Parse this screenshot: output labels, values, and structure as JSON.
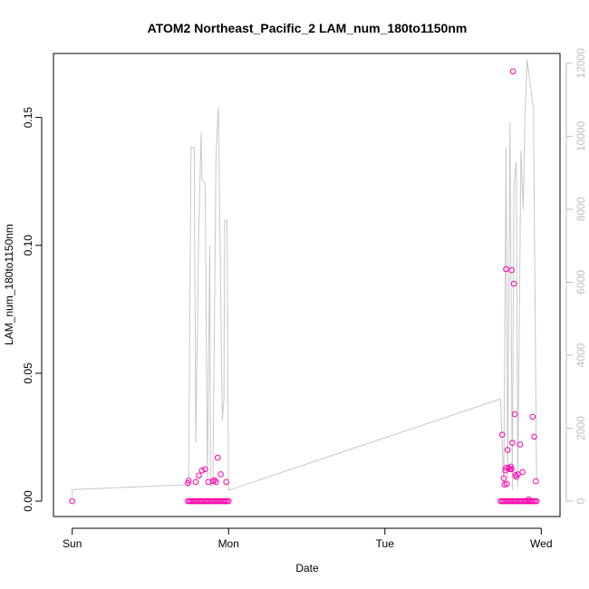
{
  "chart_data": {
    "type": "scatter",
    "title": "ATOM2 Northeast_Pacific_2 LAM_num_180to1150nm",
    "xlabel": "Date",
    "ylabel": "LAM_num_180to1150nm",
    "x_ticks": [
      "Sun",
      "Mon",
      "Tue",
      "Wed"
    ],
    "x_tick_days": [
      0,
      1,
      2,
      3
    ],
    "xlim_days": [
      -0.12,
      3.12
    ],
    "y_ticks": [
      "0.00",
      "0.05",
      "0.10",
      "0.15"
    ],
    "y_tick_values": [
      0,
      0.05,
      0.1,
      0.15
    ],
    "ylim": [
      -0.006,
      0.175
    ],
    "y2_ticks": [
      "0",
      "2000",
      "4000",
      "6000",
      "8000",
      "10000",
      "12000"
    ],
    "y2_tick_values": [
      0,
      2000,
      4000,
      6000,
      8000,
      10000,
      12000
    ],
    "y2lim": [
      -420,
      12270
    ],
    "grid": false,
    "colors": {
      "points": "#ff00aa",
      "line": "#c8c8c8",
      "axis": "#000000",
      "axis2": "#bebebe"
    },
    "series": [
      {
        "kind": "points",
        "axis": "left",
        "points": [
          [
            0.0,
            0.0
          ],
          [
            0.74,
            0.007
          ],
          [
            0.745,
            0.008
          ],
          [
            0.79,
            0.0075
          ],
          [
            0.81,
            0.01
          ],
          [
            0.83,
            0.012
          ],
          [
            0.85,
            0.0125
          ],
          [
            0.87,
            0.0075
          ],
          [
            0.9,
            0.0078
          ],
          [
            0.91,
            0.0082
          ],
          [
            0.92,
            0.0075
          ],
          [
            0.93,
            0.017
          ],
          [
            0.95,
            0.0105
          ],
          [
            0.985,
            0.0075
          ],
          [
            0.74,
            0.0
          ],
          [
            0.75,
            0.0
          ],
          [
            0.76,
            0.0
          ],
          [
            0.77,
            0.0
          ],
          [
            0.78,
            0.0
          ],
          [
            0.79,
            0.0
          ],
          [
            0.8,
            0.0
          ],
          [
            0.81,
            0.0
          ],
          [
            0.82,
            0.0
          ],
          [
            0.83,
            0.0
          ],
          [
            0.84,
            0.0
          ],
          [
            0.85,
            0.0
          ],
          [
            0.86,
            0.0
          ],
          [
            0.87,
            0.0
          ],
          [
            0.88,
            0.0
          ],
          [
            0.89,
            0.0
          ],
          [
            0.9,
            0.0
          ],
          [
            0.91,
            0.0
          ],
          [
            0.92,
            0.0
          ],
          [
            0.93,
            0.0
          ],
          [
            0.94,
            0.0
          ],
          [
            0.95,
            0.0
          ],
          [
            0.96,
            0.0
          ],
          [
            0.97,
            0.0
          ],
          [
            0.98,
            0.0
          ],
          [
            0.99,
            0.0
          ],
          [
            1.0,
            0.0
          ],
          [
            2.75,
            0.026
          ],
          [
            2.76,
            0.009
          ],
          [
            2.765,
            0.0065
          ],
          [
            2.77,
            0.012
          ],
          [
            2.775,
            0.013
          ],
          [
            2.78,
            0.0068
          ],
          [
            2.775,
            0.0907
          ],
          [
            2.785,
            0.02
          ],
          [
            2.79,
            0.013
          ],
          [
            2.8,
            0.0125
          ],
          [
            2.805,
            0.0135
          ],
          [
            2.81,
            0.0125
          ],
          [
            2.81,
            0.0903
          ],
          [
            2.82,
            0.168
          ],
          [
            2.815,
            0.0228
          ],
          [
            2.825,
            0.085
          ],
          [
            2.83,
            0.034
          ],
          [
            2.835,
            0.0102
          ],
          [
            2.84,
            0.0095
          ],
          [
            2.85,
            0.0105
          ],
          [
            2.865,
            0.0222
          ],
          [
            2.88,
            0.0114
          ],
          [
            2.92,
            0.0007
          ],
          [
            2.945,
            0.033
          ],
          [
            2.955,
            0.0252
          ],
          [
            2.965,
            0.0078
          ],
          [
            2.74,
            0.0
          ],
          [
            2.75,
            0.0
          ],
          [
            2.76,
            0.0
          ],
          [
            2.77,
            0.0
          ],
          [
            2.78,
            0.0
          ],
          [
            2.79,
            0.0
          ],
          [
            2.8,
            0.0
          ],
          [
            2.81,
            0.0
          ],
          [
            2.82,
            0.0
          ],
          [
            2.83,
            0.0
          ],
          [
            2.84,
            0.0
          ],
          [
            2.85,
            0.0
          ],
          [
            2.86,
            0.0
          ],
          [
            2.87,
            0.0
          ],
          [
            2.88,
            0.0
          ],
          [
            2.89,
            0.0
          ],
          [
            2.9,
            0.0
          ],
          [
            2.91,
            0.0
          ],
          [
            2.92,
            0.0
          ],
          [
            2.93,
            0.0
          ],
          [
            2.94,
            0.0
          ],
          [
            2.95,
            0.0
          ],
          [
            2.96,
            0.0
          ],
          [
            2.97,
            0.0
          ]
        ]
      },
      {
        "kind": "line",
        "axis": "right",
        "points": [
          [
            0.0,
            100
          ],
          [
            0.0,
            320
          ],
          [
            0.74,
            450
          ],
          [
            0.745,
            450
          ],
          [
            0.76,
            9700
          ],
          [
            0.78,
            9700
          ],
          [
            0.79,
            1600
          ],
          [
            0.81,
            7600
          ],
          [
            0.825,
            10100
          ],
          [
            0.83,
            8800
          ],
          [
            0.85,
            8700
          ],
          [
            0.865,
            600
          ],
          [
            0.88,
            7000
          ],
          [
            0.885,
            400
          ],
          [
            0.9,
            600
          ],
          [
            0.92,
            9500
          ],
          [
            0.935,
            10800
          ],
          [
            0.96,
            2200
          ],
          [
            0.97,
            2800
          ],
          [
            0.975,
            7700
          ],
          [
            0.99,
            7700
          ],
          [
            1.0,
            300
          ],
          [
            2.74,
            2800
          ],
          [
            2.76,
            400
          ],
          [
            2.775,
            9700
          ],
          [
            2.785,
            600
          ],
          [
            2.8,
            10400
          ],
          [
            2.815,
            300
          ],
          [
            2.825,
            8600
          ],
          [
            2.84,
            9300
          ],
          [
            2.85,
            400
          ],
          [
            2.87,
            9600
          ],
          [
            2.885,
            8000
          ],
          [
            2.895,
            10500
          ],
          [
            2.91,
            12100
          ],
          [
            2.945,
            10900
          ],
          [
            2.95,
            10800
          ],
          [
            2.97,
            600
          ]
        ]
      }
    ]
  }
}
